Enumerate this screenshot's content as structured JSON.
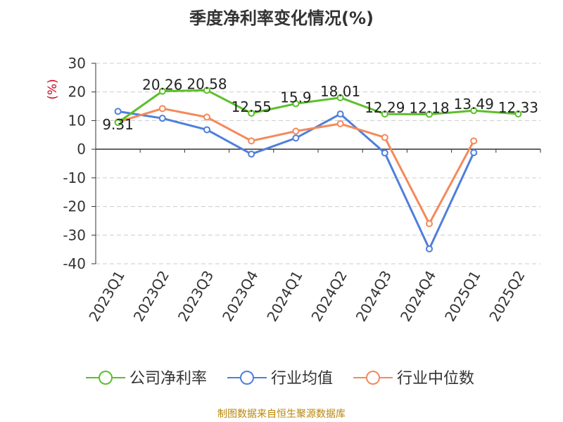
{
  "chart_data": {
    "type": "line",
    "title": "季度净利率变化情况(%)",
    "ylabel": "(%)",
    "xlabel": "",
    "ylim": [
      -40,
      30
    ],
    "yticks": [
      30,
      20,
      10,
      0,
      -10,
      -20,
      -30,
      -40
    ],
    "grid": true,
    "legend_position": "bottom",
    "categories": [
      "2023Q1",
      "2023Q2",
      "2023Q3",
      "2023Q4",
      "2024Q1",
      "2024Q2",
      "2024Q3",
      "2024Q4",
      "2025Q1",
      "2025Q2"
    ],
    "series": [
      {
        "name": "公司净利率",
        "color": "#5ac02a",
        "values": [
          9.31,
          20.26,
          20.58,
          12.55,
          15.9,
          18.01,
          12.29,
          12.18,
          13.49,
          12.33
        ],
        "labels": [
          "9.31",
          "20.26",
          "20.58",
          "12.55",
          "15.9",
          "18.01",
          "12.29",
          "12.18",
          "13.49",
          "12.33"
        ]
      },
      {
        "name": "行业均值",
        "color": "#4f7fdc",
        "values": [
          13.2,
          10.8,
          6.8,
          -1.7,
          3.9,
          12.3,
          -1.3,
          -34.8,
          -1.2,
          null
        ]
      },
      {
        "name": "行业中位数",
        "color": "#f4895a",
        "values": [
          9.5,
          14.2,
          11.2,
          2.9,
          6.3,
          8.9,
          4.1,
          -26.0,
          2.9,
          null
        ]
      }
    ]
  },
  "source": "制图数据来自恒生聚源数据库"
}
